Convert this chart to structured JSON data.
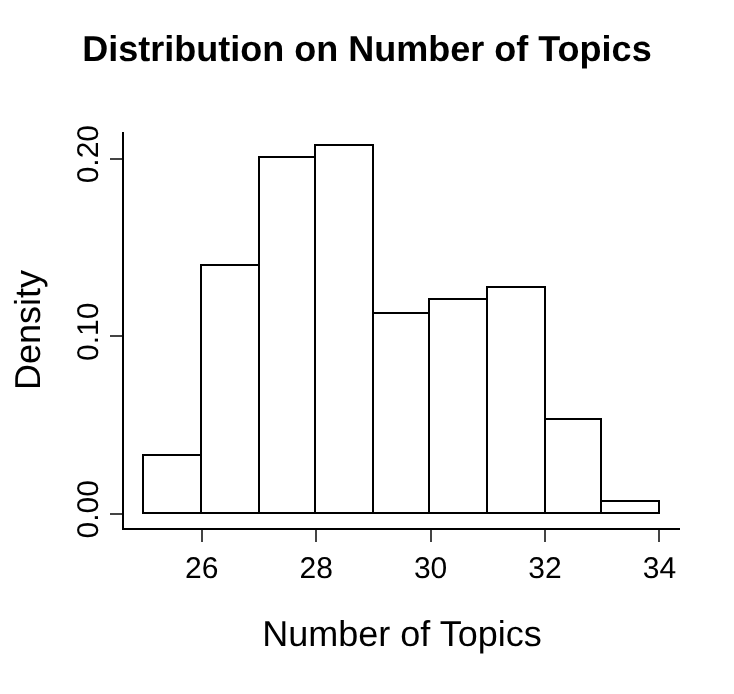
{
  "chart_data": {
    "type": "histogram",
    "title": "Distribution on Number of Topics",
    "xlabel": "Number of Topics",
    "ylabel": "Density",
    "bins": [
      25,
      26,
      27,
      28,
      29,
      30,
      31,
      32,
      33,
      34
    ],
    "values": [
      0.033,
      0.14,
      0.2,
      0.207,
      0.113,
      0.12,
      0.127,
      0.053,
      0.007
    ],
    "color": "#ffffff",
    "xlim": [
      24.64,
      34.36
    ],
    "xticks": [
      26,
      28,
      30,
      32,
      34
    ],
    "ylim": [
      -0.008,
      0.215
    ],
    "yticks": [
      {
        "value": 0,
        "label": "0.00"
      },
      {
        "value": 0.1,
        "label": "0.10"
      },
      {
        "value": 0.2,
        "label": "0.20"
      }
    ]
  }
}
